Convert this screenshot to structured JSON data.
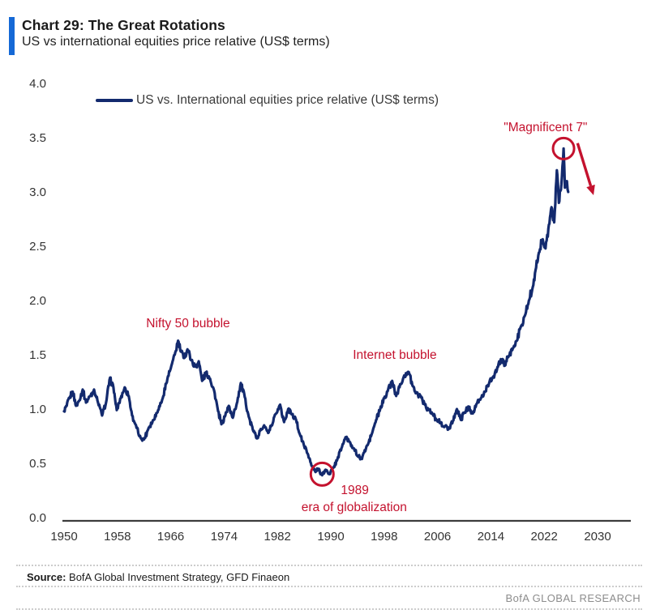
{
  "header": {
    "title": "Chart 29: The Great Rotations",
    "subtitle": "US vs international equities price relative (US$ terms)"
  },
  "footer": {
    "source_label": "Source:",
    "source_text": " BofA Global Investment Strategy, GFD Finaeon",
    "brand": "BofA GLOBAL RESEARCH"
  },
  "colors": {
    "accent_bar_blue": "#1569d6",
    "line_navy": "#132a6e",
    "annotation_red": "#c4122e",
    "axis_gray": "#3d3d3d"
  },
  "chart_data": {
    "type": "line",
    "title": "Chart 29: The Great Rotations",
    "subtitle": "US vs international equities price relative (US$ terms)",
    "legend": [
      "US vs. International equities price relative (US$ terms)"
    ],
    "legend_position": "top-left",
    "grid": false,
    "xlabel": "",
    "ylabel": "",
    "xlim": [
      1949.8,
      2031
    ],
    "ylim": [
      0.0,
      4.0
    ],
    "x_ticks": [
      1950,
      1958,
      1966,
      1974,
      1982,
      1990,
      1998,
      2006,
      2014,
      2022,
      2030
    ],
    "y_ticks": [
      "0.0",
      "0.5",
      "1.0",
      "1.5",
      "2.0",
      "2.5",
      "3.0",
      "3.5",
      "4.0"
    ],
    "series": [
      {
        "name": "US vs. International equities price relative (US$ terms)",
        "points": [
          [
            1950.0,
            0.98
          ],
          [
            1950.4,
            1.03
          ],
          [
            1950.8,
            1.1
          ],
          [
            1951.3,
            1.16
          ],
          [
            1951.8,
            1.03
          ],
          [
            1952.3,
            1.08
          ],
          [
            1952.8,
            1.18
          ],
          [
            1953.3,
            1.06
          ],
          [
            1953.9,
            1.12
          ],
          [
            1954.5,
            1.18
          ],
          [
            1955.1,
            1.06
          ],
          [
            1955.7,
            0.94
          ],
          [
            1956.3,
            1.06
          ],
          [
            1956.9,
            1.29
          ],
          [
            1957.4,
            1.2
          ],
          [
            1957.9,
            0.99
          ],
          [
            1958.5,
            1.1
          ],
          [
            1959.1,
            1.2
          ],
          [
            1959.7,
            1.12
          ],
          [
            1960.2,
            0.94
          ],
          [
            1960.7,
            0.86
          ],
          [
            1961.3,
            0.75
          ],
          [
            1962.0,
            0.72
          ],
          [
            1962.7,
            0.83
          ],
          [
            1963.4,
            0.9
          ],
          [
            1964.1,
            0.99
          ],
          [
            1964.8,
            1.1
          ],
          [
            1965.5,
            1.28
          ],
          [
            1966.1,
            1.4
          ],
          [
            1966.6,
            1.5
          ],
          [
            1967.1,
            1.63
          ],
          [
            1967.5,
            1.53
          ],
          [
            1968.0,
            1.47
          ],
          [
            1968.5,
            1.55
          ],
          [
            1969.1,
            1.45
          ],
          [
            1969.7,
            1.39
          ],
          [
            1970.2,
            1.44
          ],
          [
            1970.7,
            1.26
          ],
          [
            1971.3,
            1.34
          ],
          [
            1971.9,
            1.28
          ],
          [
            1972.5,
            1.17
          ],
          [
            1973.1,
            0.98
          ],
          [
            1973.6,
            0.86
          ],
          [
            1974.1,
            0.93
          ],
          [
            1974.7,
            1.03
          ],
          [
            1975.3,
            0.92
          ],
          [
            1975.9,
            1.05
          ],
          [
            1976.5,
            1.24
          ],
          [
            1977.1,
            1.11
          ],
          [
            1977.7,
            0.93
          ],
          [
            1978.3,
            0.81
          ],
          [
            1978.9,
            0.73
          ],
          [
            1979.4,
            0.8
          ],
          [
            1980.0,
            0.85
          ],
          [
            1980.6,
            0.78
          ],
          [
            1981.2,
            0.85
          ],
          [
            1981.8,
            0.96
          ],
          [
            1982.4,
            1.04
          ],
          [
            1983.0,
            0.88
          ],
          [
            1983.6,
            1.0
          ],
          [
            1984.2,
            0.95
          ],
          [
            1984.8,
            0.9
          ],
          [
            1985.4,
            0.76
          ],
          [
            1986.0,
            0.66
          ],
          [
            1986.6,
            0.58
          ],
          [
            1987.1,
            0.48
          ],
          [
            1987.7,
            0.42
          ],
          [
            1988.2,
            0.45
          ],
          [
            1988.7,
            0.39
          ],
          [
            1989.2,
            0.44
          ],
          [
            1989.8,
            0.4
          ],
          [
            1990.4,
            0.46
          ],
          [
            1991.0,
            0.54
          ],
          [
            1991.6,
            0.64
          ],
          [
            1992.2,
            0.74
          ],
          [
            1992.8,
            0.7
          ],
          [
            1993.4,
            0.64
          ],
          [
            1994.0,
            0.57
          ],
          [
            1994.5,
            0.54
          ],
          [
            1995.0,
            0.6
          ],
          [
            1995.6,
            0.68
          ],
          [
            1996.2,
            0.78
          ],
          [
            1996.8,
            0.9
          ],
          [
            1997.4,
            1.0
          ],
          [
            1998.0,
            1.1
          ],
          [
            1998.6,
            1.18
          ],
          [
            1999.2,
            1.26
          ],
          [
            1999.8,
            1.12
          ],
          [
            2000.4,
            1.23
          ],
          [
            2001.0,
            1.31
          ],
          [
            2001.7,
            1.34
          ],
          [
            2002.3,
            1.21
          ],
          [
            2002.9,
            1.15
          ],
          [
            2003.5,
            1.12
          ],
          [
            2004.1,
            1.04
          ],
          [
            2004.7,
            0.99
          ],
          [
            2005.3,
            0.95
          ],
          [
            2005.9,
            0.9
          ],
          [
            2006.5,
            0.87
          ],
          [
            2007.1,
            0.84
          ],
          [
            2007.7,
            0.82
          ],
          [
            2008.3,
            0.89
          ],
          [
            2008.9,
            1.0
          ],
          [
            2009.5,
            0.9
          ],
          [
            2010.1,
            0.97
          ],
          [
            2010.7,
            1.02
          ],
          [
            2011.3,
            0.96
          ],
          [
            2011.9,
            1.05
          ],
          [
            2012.5,
            1.1
          ],
          [
            2013.1,
            1.16
          ],
          [
            2013.7,
            1.23
          ],
          [
            2014.3,
            1.29
          ],
          [
            2014.9,
            1.36
          ],
          [
            2015.5,
            1.46
          ],
          [
            2016.1,
            1.4
          ],
          [
            2016.7,
            1.49
          ],
          [
            2017.3,
            1.56
          ],
          [
            2017.9,
            1.63
          ],
          [
            2018.5,
            1.76
          ],
          [
            2019.1,
            1.86
          ],
          [
            2019.7,
            2.0
          ],
          [
            2020.2,
            2.1
          ],
          [
            2020.7,
            2.28
          ],
          [
            2021.2,
            2.44
          ],
          [
            2021.7,
            2.56
          ],
          [
            2022.2,
            2.48
          ],
          [
            2022.7,
            2.7
          ],
          [
            2023.1,
            2.86
          ],
          [
            2023.5,
            2.72
          ],
          [
            2023.9,
            3.2
          ],
          [
            2024.2,
            2.9
          ],
          [
            2024.5,
            3.02
          ],
          [
            2024.9,
            3.4
          ],
          [
            2025.1,
            3.04
          ],
          [
            2025.4,
            3.1
          ],
          [
            2025.6,
            3.0
          ]
        ]
      }
    ],
    "annotations": [
      {
        "id": "nifty-50-bubble",
        "text": "Nifty 50 bubble",
        "year": 1968.6,
        "value": 1.78
      },
      {
        "id": "internet-bubble",
        "text": "Internet bubble",
        "year": 1999.6,
        "value": 1.49
      },
      {
        "id": "year-1989",
        "text": "1989",
        "year": 1993.6,
        "value": 0.25
      },
      {
        "id": "era-of-globalization",
        "text": "era of globalization",
        "year": 1993.5,
        "value": 0.09
      },
      {
        "id": "magnificent-7",
        "text": "\"Magnificent 7\"",
        "year": 2022.2,
        "value": 3.59
      }
    ],
    "highlight_circles": [
      {
        "id": "circle-1989-trough",
        "year": 1988.7,
        "value": 0.4,
        "radius": 14
      },
      {
        "id": "circle-magnificent-7-peak",
        "year": 2024.9,
        "value": 3.4,
        "radius": 13
      }
    ],
    "arrow": {
      "from_year": 2027.0,
      "from_value": 3.45,
      "to_year": 2029.4,
      "to_value": 2.97
    }
  }
}
